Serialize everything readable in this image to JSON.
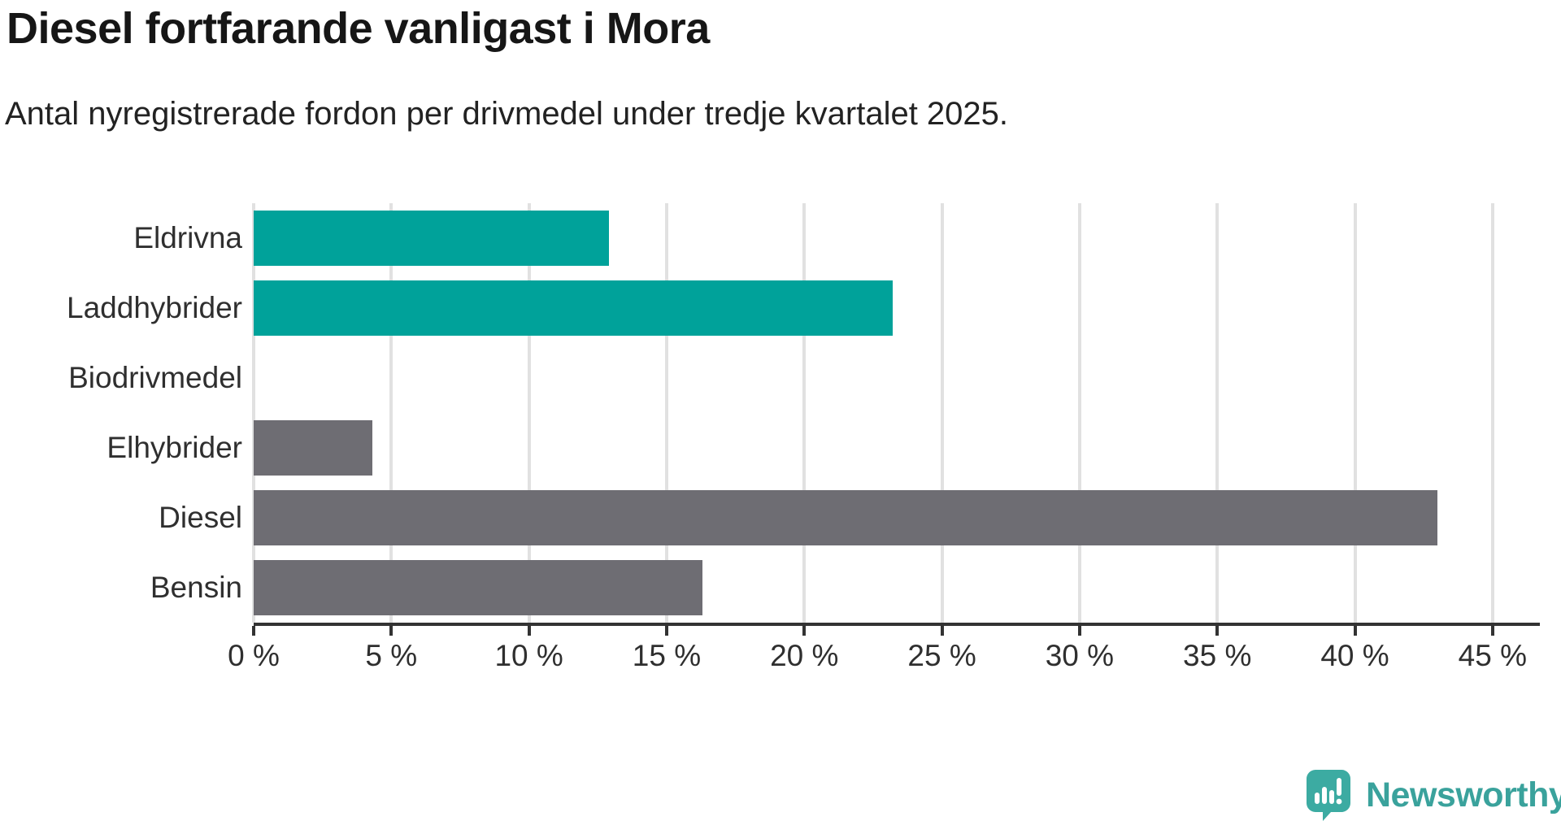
{
  "chart_data": {
    "type": "bar",
    "orientation": "horizontal",
    "title": "Diesel fortfarande vanligast i Mora",
    "subtitle": "Antal nyregistrerade fordon per drivmedel under tredje kvartalet 2025.",
    "categories": [
      "Eldrivna",
      "Laddhybrider",
      "Biodrivmedel",
      "Elhybrider",
      "Diesel",
      "Bensin"
    ],
    "values": [
      12.9,
      23.2,
      0,
      4.3,
      43,
      16.3
    ],
    "bar_colors": [
      "#00a29a",
      "#00a29a",
      "#00a29a",
      "#6e6d73",
      "#6e6d73",
      "#6e6d73"
    ],
    "unit": "%",
    "xlabel": "",
    "ylabel": "",
    "xlim": [
      0,
      46.6
    ],
    "x_ticks": [
      0,
      5,
      10,
      15,
      20,
      25,
      30,
      35,
      40,
      45
    ],
    "x_tick_labels": [
      "0 %",
      "5 %",
      "10 %",
      "15 %",
      "20 %",
      "25 %",
      "30 %",
      "35 %",
      "40 %",
      "45 %"
    ],
    "grid": "vertical",
    "legend": "none"
  },
  "colors": {
    "accent_teal": "#00a29a",
    "neutral_gray": "#6e6d73",
    "gridline": "#e1e1e1",
    "axis": "#333333",
    "logo_teal": "#3aa29c"
  },
  "logo": {
    "brand": "Newsworthy",
    "icon": "newsworthy-bubble-barchart-icon"
  }
}
